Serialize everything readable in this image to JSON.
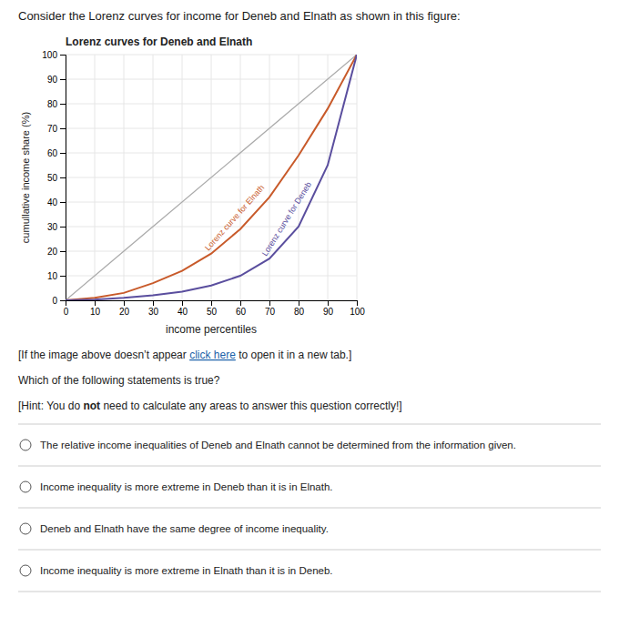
{
  "chart_data": {
    "type": "line",
    "title": "Lorenz curves for Deneb and Elnath",
    "xlabel": "income percentiles",
    "ylabel": "cumullative income share (%)",
    "x": [
      0,
      10,
      20,
      30,
      40,
      50,
      60,
      70,
      80,
      90,
      100
    ],
    "series": [
      {
        "x": [
          0,
          100
        ],
        "values": [
          0,
          100
        ],
        "color": "#aaaaaa"
      },
      {
        "name": "Lorenz curve for Elnath",
        "color": "#c85a2a",
        "values": [
          0,
          1.0,
          3.0,
          7.0,
          12.0,
          19.0,
          29.0,
          42.0,
          59.0,
          78.0,
          100
        ]
      },
      {
        "name": "Lorenz curve for Deneb",
        "color": "#5a4e9e",
        "values": [
          0,
          0.3,
          1.0,
          2.0,
          3.5,
          6.0,
          10.0,
          17.0,
          30.0,
          55.0,
          100
        ]
      }
    ],
    "xlim": [
      0,
      100
    ],
    "ylim": [
      0,
      100
    ],
    "xticks": [
      0,
      10,
      20,
      30,
      40,
      50,
      60,
      70,
      80,
      90,
      100
    ],
    "yticks": [
      0,
      10,
      20,
      30,
      40,
      50,
      60,
      70,
      80,
      90,
      100
    ],
    "grid": true
  },
  "page": {
    "heading": "Consider the Lorenz curves for income for Deneb and Elnath as shown in this figure:",
    "notice": {
      "before": "[If the image above doesn’t appear ",
      "link": "click here",
      "after": " to open it in a new tab.]"
    },
    "prompt": "Which of the following statements is true?",
    "hint": {
      "before": "[Hint: You do ",
      "emphasis": "not",
      "after": " need to calculate any areas to answer this question correctly!]"
    },
    "options": [
      "The relative income inequalities of Deneb and Elnath cannot be determined from the information given.",
      "Income inequality is more extreme in Deneb than it is in Elnath.",
      "Deneb and Elnath have the same degree of income inequality.",
      "Income inequality is more extreme in Elnath than it is in Deneb."
    ]
  }
}
